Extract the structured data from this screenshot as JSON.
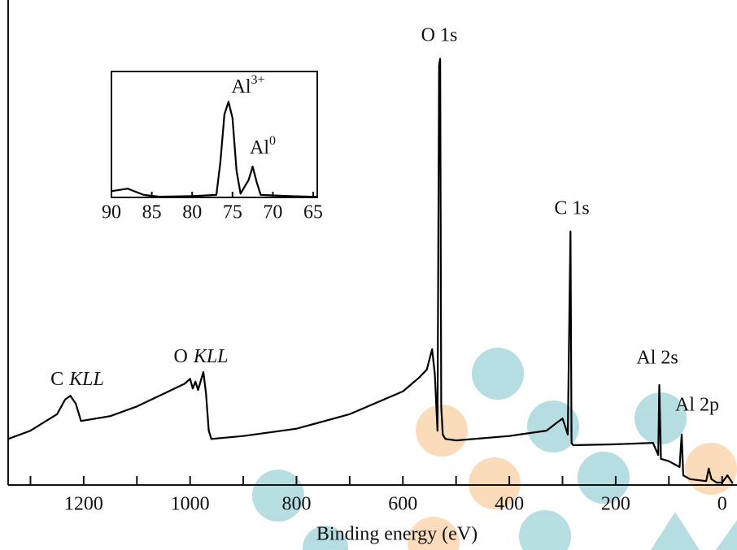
{
  "chart_data": [
    {
      "type": "line",
      "xlabel": "Binding energy (eV)",
      "x": [
        1342,
        1300,
        1250,
        1235,
        1225,
        1215,
        1205,
        1150,
        1100,
        1050,
        1010,
        1000,
        995,
        990,
        985,
        975,
        970,
        965,
        960,
        900,
        800,
        700,
        600,
        570,
        555,
        545,
        540,
        535,
        532,
        530,
        528,
        525,
        520,
        500,
        400,
        330,
        310,
        300,
        295,
        290,
        285,
        283,
        280,
        200,
        130,
        120,
        118,
        115,
        100,
        80,
        76,
        73,
        60,
        30,
        25,
        20,
        10,
        0,
        -10,
        -20
      ],
      "series": [
        {
          "color": "#000000",
          "values": [
            9.5,
            11.2,
            14.6,
            17.6,
            18.4,
            16.8,
            13.2,
            14.2,
            16.2,
            18.8,
            20.9,
            21.9,
            19.9,
            21.3,
            19.6,
            23.3,
            18.8,
            11.2,
            9.5,
            10.1,
            11.6,
            14.6,
            19.3,
            22.1,
            23.8,
            28.0,
            22.9,
            11.2,
            86.6,
            87.9,
            16.2,
            10.4,
            9.5,
            9.2,
            10.1,
            11.2,
            12.9,
            13.7,
            12.1,
            10.4,
            52.3,
            8.7,
            8.2,
            8.4,
            8.7,
            6.2,
            20.6,
            5.4,
            4.9,
            3.7,
            10.4,
            2.0,
            1.2,
            0.8,
            3.4,
            1.2,
            0.5,
            0.5,
            2.0,
            0.3
          ]
        }
      ],
      "xlim": [
        1342,
        -28
      ],
      "ylim": [
        0,
        100
      ],
      "xticks": [
        1200,
        1000,
        800,
        600,
        400,
        200,
        0
      ],
      "xminor_ticks": [
        1300,
        1100,
        900,
        700,
        500,
        300,
        100
      ],
      "annotations": [
        {
          "prefix": "C",
          "italic": "KLL"
        },
        {
          "prefix": "O",
          "italic": "KLL"
        },
        "O 1s",
        "C 1s",
        "Al 2s",
        "Al 2p"
      ]
    },
    {
      "type": "line",
      "x": [
        90,
        88,
        86,
        84,
        80,
        77,
        76.5,
        76,
        75.5,
        75,
        74.5,
        74,
        73,
        72.5,
        72,
        71.5,
        68,
        65,
        64.5
      ],
      "series": [
        {
          "color": "#000000",
          "values": [
            5,
            7,
            2,
            0.6,
            1,
            2,
            28,
            66,
            76,
            63,
            21,
            3,
            14,
            24.5,
            12,
            2,
            1,
            0.5,
            0.5
          ]
        }
      ],
      "xlim": [
        90,
        64.5
      ],
      "ylim": [
        0,
        100
      ],
      "xticks": [
        90,
        85,
        80,
        75,
        70,
        65
      ],
      "annotations": [
        {
          "text": "Al",
          "sup": "3+"
        },
        {
          "text": "Al",
          "sup": "0"
        }
      ]
    }
  ]
}
